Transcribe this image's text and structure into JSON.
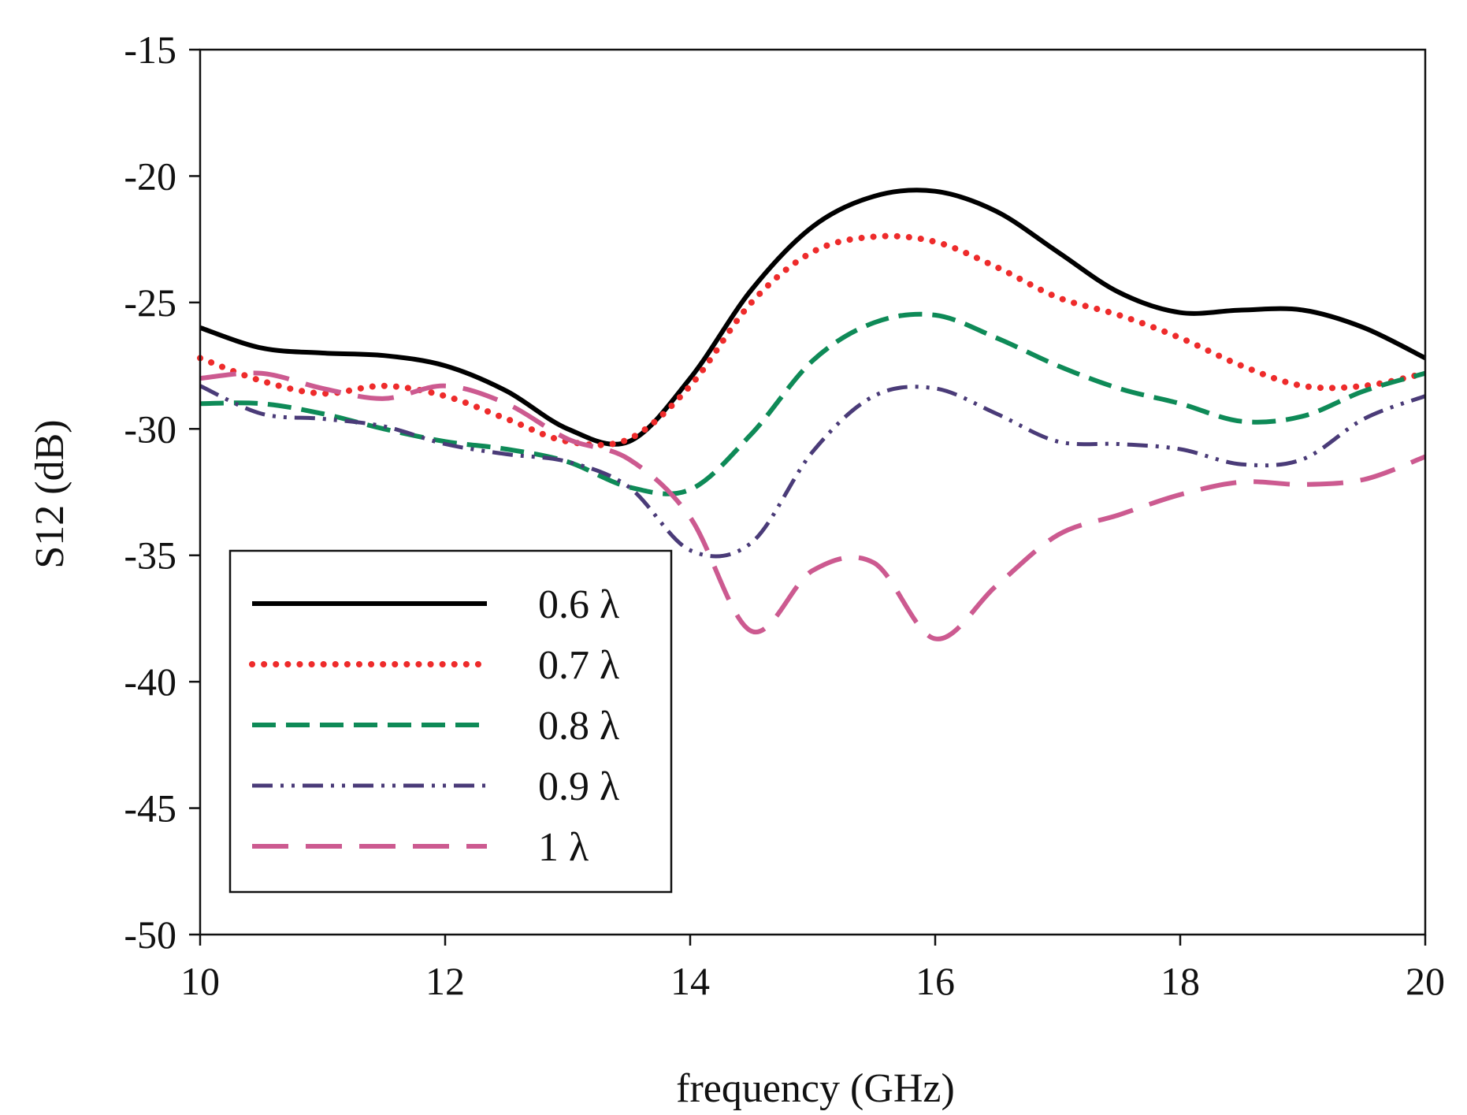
{
  "chart_data": {
    "type": "line",
    "title": "",
    "xlabel": "frequency (GHz)",
    "ylabel": "S12 (dB)",
    "xlim": [
      10,
      20
    ],
    "ylim": [
      -50,
      -15
    ],
    "xticks": [
      10,
      12,
      14,
      16,
      18,
      20
    ],
    "yticks": [
      -50,
      -45,
      -40,
      -35,
      -30,
      -25,
      -20,
      -15
    ],
    "grid": false,
    "legend_position": "bottom-left",
    "series": [
      {
        "name": "0.6 λ",
        "color": "#000000",
        "style": "solid",
        "x": [
          10,
          10.5,
          11,
          11.5,
          12,
          12.5,
          13,
          13.5,
          14,
          14.5,
          15,
          15.5,
          16,
          16.5,
          17,
          17.5,
          18,
          18.5,
          19,
          19.5,
          20
        ],
        "y": [
          -26.0,
          -26.8,
          -27.0,
          -27.1,
          -27.5,
          -28.5,
          -30.0,
          -30.5,
          -28.0,
          -24.5,
          -22.0,
          -20.8,
          -20.6,
          -21.4,
          -23.0,
          -24.6,
          -25.4,
          -25.3,
          -25.3,
          -26.0,
          -27.2
        ]
      },
      {
        "name": "0.7 λ",
        "color": "#ee2b2b",
        "style": "dotted",
        "x": [
          10,
          10.5,
          11,
          11.5,
          12,
          12.5,
          13,
          13.5,
          14,
          14.5,
          15,
          15.5,
          16,
          16.5,
          17,
          17.5,
          18,
          18.5,
          19,
          19.5,
          20
        ],
        "y": [
          -27.2,
          -28.1,
          -28.6,
          -28.3,
          -28.7,
          -29.6,
          -30.5,
          -30.4,
          -28.3,
          -25.0,
          -23.0,
          -22.4,
          -22.6,
          -23.6,
          -24.8,
          -25.5,
          -26.4,
          -27.5,
          -28.3,
          -28.3,
          -27.8
        ]
      },
      {
        "name": "0.8 λ",
        "color": "#0e8a57",
        "style": "dashed",
        "x": [
          10,
          10.5,
          11,
          11.5,
          12,
          12.5,
          13,
          13.5,
          14,
          14.5,
          15,
          15.5,
          16,
          16.5,
          17,
          17.5,
          18,
          18.5,
          19,
          19.5,
          20
        ],
        "y": [
          -29.0,
          -29.0,
          -29.4,
          -30.0,
          -30.5,
          -30.8,
          -31.3,
          -32.3,
          -32.4,
          -30.2,
          -27.3,
          -25.8,
          -25.5,
          -26.4,
          -27.5,
          -28.4,
          -29.0,
          -29.7,
          -29.5,
          -28.5,
          -27.8
        ]
      },
      {
        "name": "0.9 λ",
        "color": "#4a3b78",
        "style": "dash-dot-dot",
        "x": [
          10,
          10.5,
          11,
          11.5,
          12,
          12.5,
          13,
          13.5,
          14,
          14.5,
          15,
          15.5,
          16,
          16.5,
          17,
          17.5,
          18,
          18.5,
          19,
          19.5,
          20
        ],
        "y": [
          -28.3,
          -29.4,
          -29.6,
          -29.9,
          -30.6,
          -31.0,
          -31.3,
          -32.3,
          -34.8,
          -34.5,
          -30.9,
          -28.7,
          -28.4,
          -29.4,
          -30.5,
          -30.6,
          -30.8,
          -31.4,
          -31.2,
          -29.6,
          -28.7
        ]
      },
      {
        "name": "1 λ",
        "color": "#cc5a90",
        "style": "long-dash",
        "x": [
          10,
          10.5,
          11,
          11.5,
          12,
          12.5,
          13,
          13.5,
          14,
          14.5,
          15,
          15.5,
          16,
          16.5,
          17,
          17.5,
          18,
          18.5,
          19,
          19.5,
          20
        ],
        "y": [
          -28.0,
          -27.8,
          -28.4,
          -28.8,
          -28.3,
          -29.0,
          -30.4,
          -31.2,
          -33.5,
          -38.0,
          -35.6,
          -35.3,
          -38.3,
          -36.2,
          -34.2,
          -33.4,
          -32.6,
          -32.1,
          -32.2,
          -32.0,
          -31.1
        ]
      }
    ]
  }
}
